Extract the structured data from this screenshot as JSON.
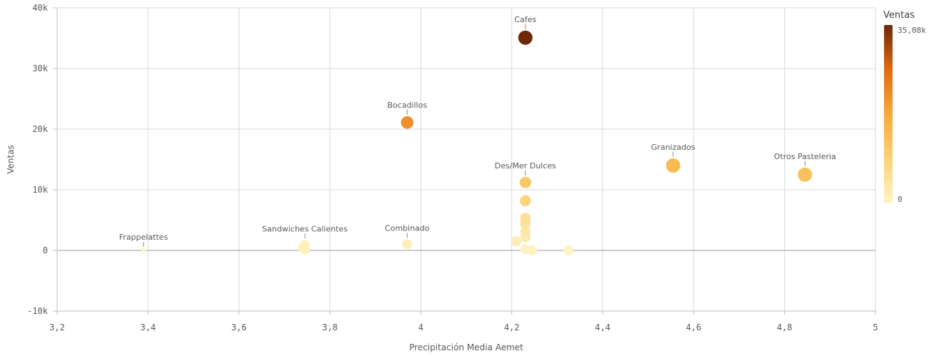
{
  "chart_data": {
    "type": "scatter",
    "xlabel": "Precipitación Media Aemet",
    "ylabel": "Ventas",
    "xlim": [
      3.2,
      5.0
    ],
    "ylim": [
      -10000,
      40000
    ],
    "x_ticks": [
      "3,2",
      "3,4",
      "3,6",
      "3,8",
      "4",
      "4,2",
      "4,4",
      "4,6",
      "4,8",
      "5"
    ],
    "y_ticks": [
      "-10k",
      "0",
      "10k",
      "20k",
      "30k",
      "40k"
    ],
    "grid": true,
    "legend": {
      "title": "Ventas",
      "placement": "right",
      "max_label": "35,08k",
      "min_label": "0",
      "min": 0,
      "max": 35080,
      "colors": [
        "#fff3c4",
        "#fbd277",
        "#f7a93b",
        "#e06b10",
        "#6e2808"
      ]
    },
    "points": [
      {
        "label": "Cafes",
        "x": 4.23,
        "y": 35080
      },
      {
        "label": "Bocadillos",
        "x": 3.97,
        "y": 21100
      },
      {
        "label": "Granizados",
        "x": 4.555,
        "y": 14000
      },
      {
        "label": "Otros Pasteleria",
        "x": 4.845,
        "y": 12500
      },
      {
        "label": "Des/Mer Dulces",
        "x": 4.23,
        "y": 11200
      },
      {
        "label": "",
        "x": 4.23,
        "y": 8200
      },
      {
        "label": "",
        "x": 4.23,
        "y": 5300
      },
      {
        "label": "",
        "x": 4.23,
        "y": 4400
      },
      {
        "label": "",
        "x": 4.23,
        "y": 3100
      },
      {
        "label": "",
        "x": 4.23,
        "y": 2200
      },
      {
        "label": "",
        "x": 4.21,
        "y": 1500
      },
      {
        "label": "",
        "x": 4.23,
        "y": 200
      },
      {
        "label": "",
        "x": 4.245,
        "y": 0
      },
      {
        "label": "",
        "x": 4.325,
        "y": 0
      },
      {
        "label": "Combinado",
        "x": 3.97,
        "y": 1000
      },
      {
        "label": "Sandwiches Calientes",
        "x": 3.745,
        "y": 900
      },
      {
        "label": "",
        "x": 3.745,
        "y": 100
      },
      {
        "label": "",
        "x": 3.74,
        "y": 400
      },
      {
        "label": "Frappelattes",
        "x": 3.39,
        "y": 0
      }
    ]
  }
}
